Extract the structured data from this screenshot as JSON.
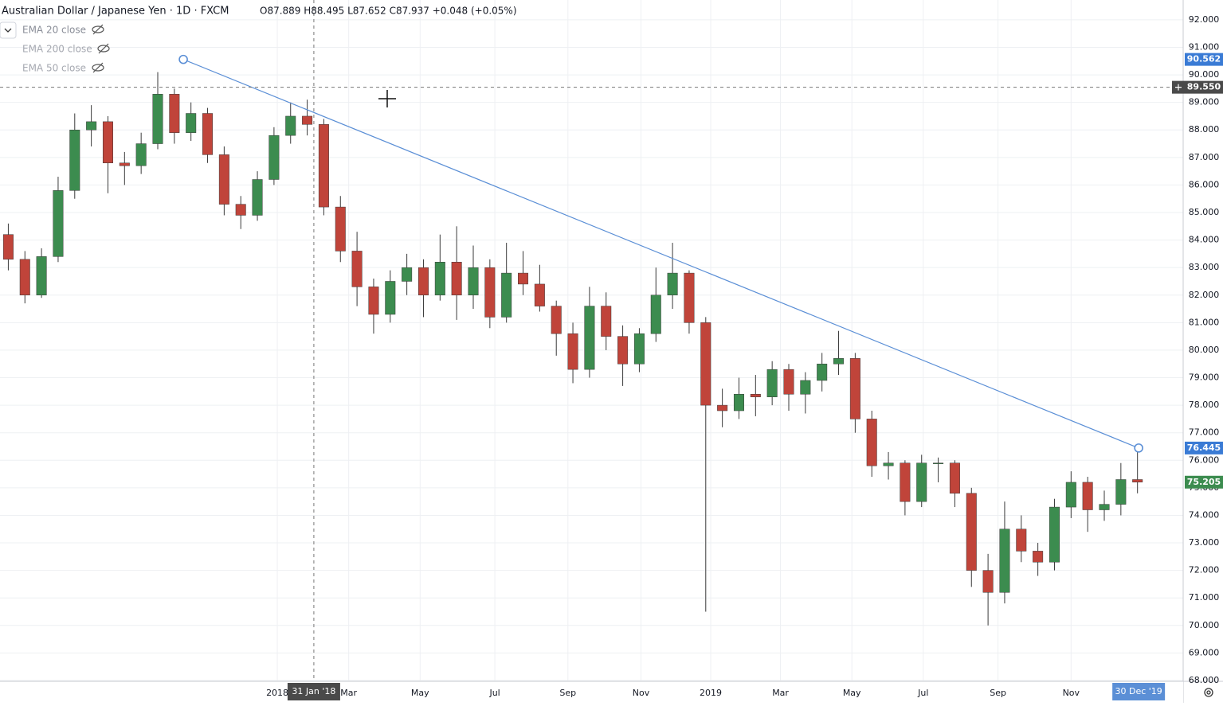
{
  "header": {
    "symbol": "Australian Dollar / Japanese Yen · 1D · FXCM",
    "ohlc": "O87.889 H88.495 L87.652 C87.937 +0.048 (+0.05%)"
  },
  "indicators": [
    "EMA 20 close",
    "EMA 200 close",
    "EMA 50 close"
  ],
  "chart_data": {
    "type": "candlestick",
    "colors": {
      "up": "#3c8c4f",
      "down": "#c0443a",
      "wick": "#3a3a3a",
      "trendline": "#5b8fd6"
    },
    "grid": true,
    "xlim": [
      -0.5,
      70.75
    ],
    "ylim": [
      67.97,
      92.72
    ],
    "xticks": [
      {
        "value": 16.2,
        "label": "2018"
      },
      {
        "value": 20.5,
        "label": "Mar"
      },
      {
        "value": 24.8,
        "label": "May"
      },
      {
        "value": 29.3,
        "label": "Jul"
      },
      {
        "value": 33.7,
        "label": "Sep"
      },
      {
        "value": 38.1,
        "label": "Nov"
      },
      {
        "value": 42.3,
        "label": "2019"
      },
      {
        "value": 46.5,
        "label": "Mar"
      },
      {
        "value": 50.8,
        "label": "May"
      },
      {
        "value": 55.1,
        "label": "Jul"
      },
      {
        "value": 59.6,
        "label": "Sep"
      },
      {
        "value": 64.0,
        "label": "Nov"
      }
    ],
    "yticks": [
      {
        "value": 68,
        "label": "68.000"
      },
      {
        "value": 69,
        "label": "69.000"
      },
      {
        "value": 70,
        "label": "70.000"
      },
      {
        "value": 71,
        "label": "71.000"
      },
      {
        "value": 72,
        "label": "72.000"
      },
      {
        "value": 73,
        "label": "73.000"
      },
      {
        "value": 74,
        "label": "74.000"
      },
      {
        "value": 75,
        "label": "75.000"
      },
      {
        "value": 76,
        "label": "76.000"
      },
      {
        "value": 77,
        "label": "77.000"
      },
      {
        "value": 78,
        "label": "78.000"
      },
      {
        "value": 79,
        "label": "79.000"
      },
      {
        "value": 80,
        "label": "80.000"
      },
      {
        "value": 81,
        "label": "81.000"
      },
      {
        "value": 82,
        "label": "82.000"
      },
      {
        "value": 83,
        "label": "83.000"
      },
      {
        "value": 84,
        "label": "84.000"
      },
      {
        "value": 85,
        "label": "85.000"
      },
      {
        "value": 86,
        "label": "86.000"
      },
      {
        "value": 87,
        "label": "87.000"
      },
      {
        "value": 88,
        "label": "88.000"
      },
      {
        "value": 89,
        "label": "89.000"
      },
      {
        "value": 90,
        "label": "90.000"
      },
      {
        "value": 91,
        "label": "91.000"
      },
      {
        "value": 92,
        "label": "92.000"
      }
    ],
    "candles": [
      [
        84.2,
        84.6,
        82.9,
        83.3
      ],
      [
        83.3,
        83.6,
        81.7,
        82.0
      ],
      [
        82.0,
        83.7,
        81.9,
        83.4
      ],
      [
        83.4,
        86.3,
        83.2,
        85.8
      ],
      [
        85.8,
        88.6,
        85.5,
        88.0
      ],
      [
        88.0,
        88.9,
        87.4,
        88.3
      ],
      [
        88.3,
        88.5,
        85.7,
        86.8
      ],
      [
        86.8,
        87.2,
        86.0,
        86.7
      ],
      [
        86.7,
        87.9,
        86.4,
        87.5
      ],
      [
        87.5,
        90.1,
        87.3,
        89.3
      ],
      [
        89.3,
        89.5,
        87.5,
        87.9
      ],
      [
        87.9,
        89.0,
        87.6,
        88.6
      ],
      [
        88.6,
        88.8,
        86.8,
        87.1
      ],
      [
        87.1,
        87.4,
        84.9,
        85.3
      ],
      [
        85.3,
        85.6,
        84.4,
        84.9
      ],
      [
        84.9,
        86.5,
        84.7,
        86.2
      ],
      [
        86.2,
        88.1,
        86.0,
        87.8
      ],
      [
        87.8,
        89.0,
        87.5,
        88.5
      ],
      [
        88.5,
        89.1,
        87.8,
        88.2
      ],
      [
        88.2,
        88.4,
        84.9,
        85.2
      ],
      [
        85.2,
        85.6,
        83.2,
        83.6
      ],
      [
        83.6,
        84.3,
        81.6,
        82.3
      ],
      [
        82.3,
        82.6,
        80.6,
        81.3
      ],
      [
        81.3,
        82.9,
        81.0,
        82.5
      ],
      [
        82.5,
        83.5,
        82.0,
        83.0
      ],
      [
        83.0,
        83.3,
        81.2,
        82.0
      ],
      [
        82.0,
        84.2,
        81.8,
        83.2
      ],
      [
        83.2,
        84.5,
        81.1,
        82.0
      ],
      [
        82.0,
        83.8,
        81.5,
        83.0
      ],
      [
        83.0,
        83.3,
        80.8,
        81.2
      ],
      [
        81.2,
        83.9,
        81.0,
        82.8
      ],
      [
        82.8,
        83.6,
        82.0,
        82.4
      ],
      [
        82.4,
        83.1,
        81.4,
        81.6
      ],
      [
        81.6,
        81.8,
        79.8,
        80.6
      ],
      [
        80.6,
        81.0,
        78.8,
        79.3
      ],
      [
        79.3,
        82.3,
        79.0,
        81.6
      ],
      [
        81.6,
        82.1,
        80.0,
        80.5
      ],
      [
        80.5,
        80.9,
        78.7,
        79.5
      ],
      [
        79.5,
        80.8,
        79.2,
        80.6
      ],
      [
        80.6,
        83.0,
        80.3,
        82.0
      ],
      [
        82.0,
        83.9,
        81.5,
        82.8
      ],
      [
        82.8,
        82.9,
        80.6,
        81.0
      ],
      [
        81.0,
        81.2,
        70.5,
        78.0
      ],
      [
        78.0,
        78.6,
        77.2,
        77.8
      ],
      [
        77.8,
        79.0,
        77.5,
        78.4
      ],
      [
        78.4,
        79.1,
        77.6,
        78.3
      ],
      [
        78.3,
        79.6,
        78.0,
        79.3
      ],
      [
        79.3,
        79.5,
        77.8,
        78.4
      ],
      [
        78.4,
        79.2,
        77.7,
        78.9
      ],
      [
        78.9,
        79.9,
        78.5,
        79.5
      ],
      [
        79.5,
        80.7,
        79.1,
        79.7
      ],
      [
        79.7,
        79.9,
        77.0,
        77.5
      ],
      [
        77.5,
        77.8,
        75.4,
        75.8
      ],
      [
        75.8,
        76.3,
        75.3,
        75.9
      ],
      [
        75.9,
        76.0,
        74.0,
        74.5
      ],
      [
        74.5,
        76.2,
        74.3,
        75.9
      ],
      [
        75.9,
        76.1,
        75.2,
        75.9
      ],
      [
        75.9,
        76.0,
        74.3,
        74.8
      ],
      [
        74.8,
        75.0,
        71.4,
        72.0
      ],
      [
        72.0,
        72.6,
        70.0,
        71.2
      ],
      [
        71.2,
        74.5,
        70.8,
        73.5
      ],
      [
        73.5,
        74.0,
        72.3,
        72.7
      ],
      [
        72.7,
        73.0,
        71.8,
        72.3
      ],
      [
        72.3,
        74.6,
        72.0,
        74.3
      ],
      [
        74.3,
        75.6,
        73.9,
        75.2
      ],
      [
        75.2,
        75.4,
        73.4,
        74.2
      ],
      [
        74.2,
        74.9,
        73.8,
        74.4
      ],
      [
        74.4,
        75.9,
        74.0,
        75.3
      ],
      [
        75.3,
        76.4,
        74.8,
        75.205
      ]
    ],
    "trendline": {
      "x": [
        10.54,
        68.07
      ],
      "y": [
        90.562,
        76.445
      ]
    },
    "price_labels": [
      {
        "value": 90.562,
        "label": "90.562",
        "color": "#3a7bd5"
      },
      {
        "value": 76.445,
        "label": "76.445",
        "color": "#3a7bd5"
      },
      {
        "value": 75.205,
        "label": "75.205",
        "color": "#3c8c4f"
      }
    ],
    "crosshair": {
      "x": 18.4,
      "x_label": "31 Jan '18",
      "y": {
        "value": 89.55,
        "label": "89.550"
      }
    },
    "last_date": {
      "x": 68.07,
      "label": "30 Dec '19"
    }
  }
}
